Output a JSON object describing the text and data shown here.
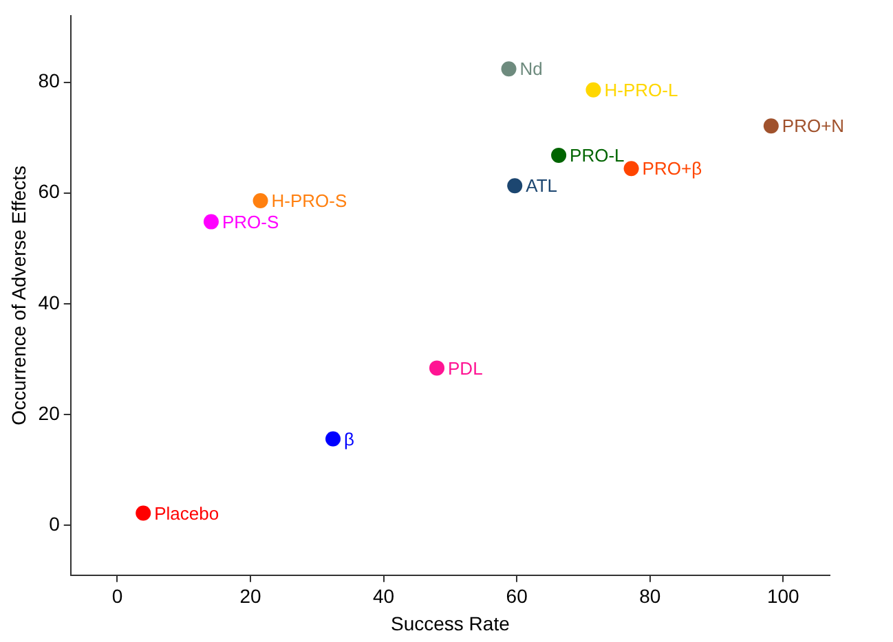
{
  "chart_data": {
    "type": "scatter",
    "xlabel": "Success Rate",
    "ylabel": "Occurrence of Adverse Effects",
    "xlim": [
      -7,
      107
    ],
    "ylim": [
      -9,
      92
    ],
    "xticks": [
      0,
      20,
      40,
      60,
      80,
      100
    ],
    "yticks": [
      0,
      20,
      40,
      60,
      80
    ],
    "grid": false,
    "legend": false,
    "marker": "circle",
    "series": [
      {
        "name": "Placebo",
        "color": "#ff0000",
        "x": [
          3.9
        ],
        "values": [
          2.2
        ]
      },
      {
        "name": "β",
        "color": "#0000ff",
        "x": [
          32.4
        ],
        "values": [
          15.6
        ]
      },
      {
        "name": "PDL",
        "color": "#ff1493",
        "x": [
          48
        ],
        "values": [
          28.4
        ]
      },
      {
        "name": "PRO-S",
        "color": "#ff00ff",
        "x": [
          14.1
        ],
        "values": [
          54.8
        ]
      },
      {
        "name": "H-PRO-S",
        "color": "#ff8010",
        "x": [
          21.5
        ],
        "values": [
          58.6
        ]
      },
      {
        "name": "Nd",
        "color": "#6e8b7e",
        "x": [
          58.8
        ],
        "values": [
          82.4
        ]
      },
      {
        "name": "ATL",
        "color": "#1c4670",
        "x": [
          59.7
        ],
        "values": [
          61.3
        ]
      },
      {
        "name": "PRO-L",
        "color": "#006400",
        "x": [
          66.3
        ],
        "values": [
          66.8
        ]
      },
      {
        "name": "PRO+β",
        "color": "#ff4500",
        "x": [
          77.2
        ],
        "values": [
          64.4
        ]
      },
      {
        "name": "H-PRO-L",
        "color": "#ffd700",
        "x": [
          71.5
        ],
        "values": [
          78.6
        ]
      },
      {
        "name": "PRO+N",
        "color": "#a0522d",
        "x": [
          98.2
        ],
        "values": [
          72.1
        ]
      }
    ]
  }
}
